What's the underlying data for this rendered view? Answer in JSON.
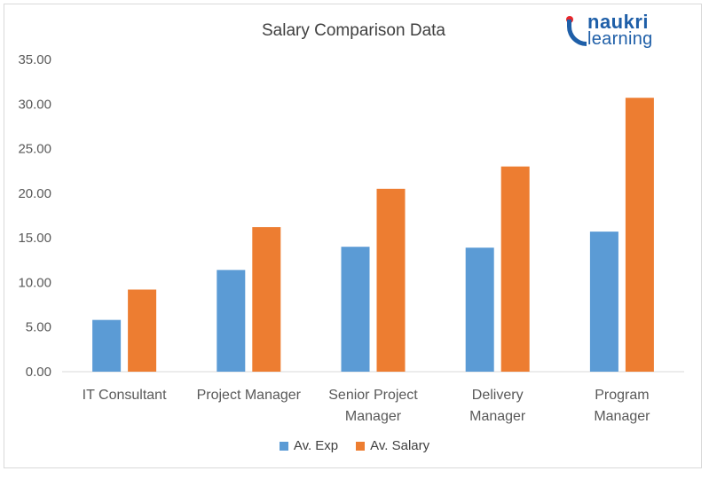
{
  "chart_data": {
    "type": "bar",
    "title": "Salary Comparison Data",
    "categories": [
      [
        "IT Consultant"
      ],
      [
        "Project Manager"
      ],
      [
        "Senior Project",
        "Manager"
      ],
      [
        "Delivery",
        "Manager"
      ],
      [
        "Program",
        "Manager"
      ]
    ],
    "series": [
      {
        "name": "Av. Exp",
        "color": "#5b9bd5",
        "values": [
          5.8,
          11.4,
          14.0,
          13.9,
          15.7
        ]
      },
      {
        "name": "Av. Salary",
        "color": "#ed7d31",
        "values": [
          9.2,
          16.2,
          20.5,
          23.0,
          30.7
        ]
      }
    ],
    "ylim": [
      0,
      35
    ],
    "yticks": [
      "0.00",
      "5.00",
      "10.00",
      "15.00",
      "20.00",
      "25.00",
      "30.00",
      "35.00"
    ],
    "grid": false,
    "legend": "bottom"
  },
  "logo": {
    "line1": "naukri",
    "line2": "learning",
    "color": "#1f5fa8",
    "dot_color": "#e8262a"
  }
}
